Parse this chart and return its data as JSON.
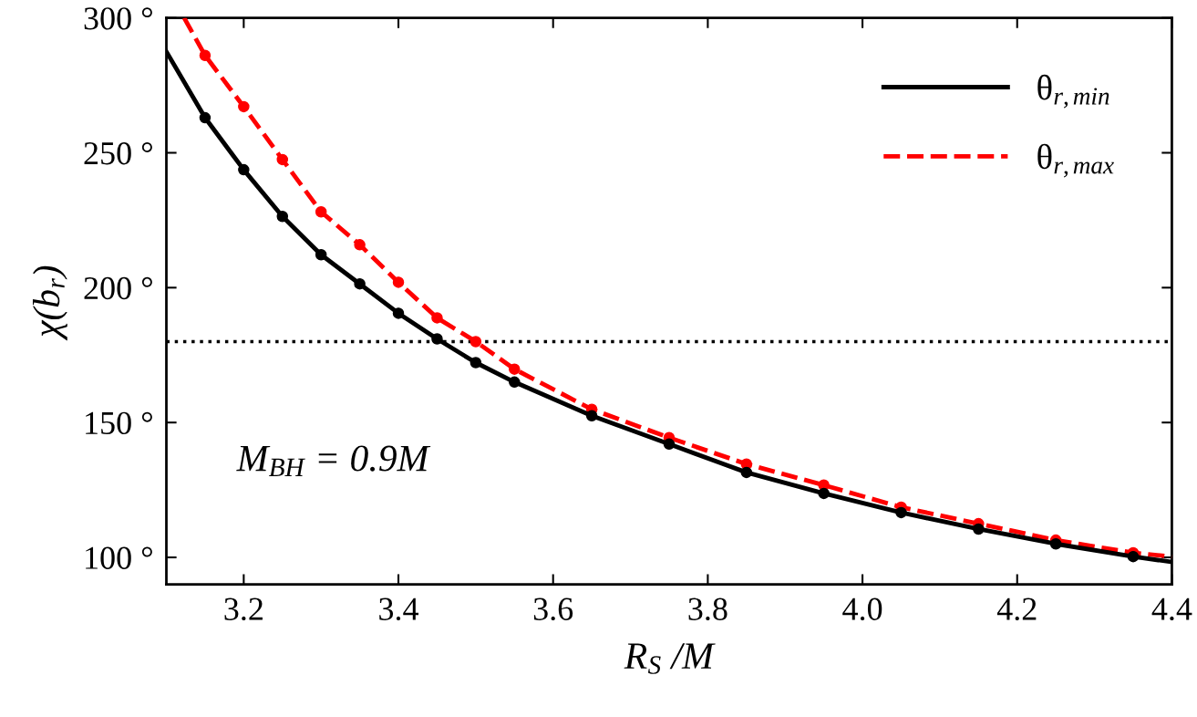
{
  "chart_data": {
    "type": "line",
    "xlabel": "R$_{S}$ /M",
    "ylabel": "χ(b$_{r}$)",
    "xlim": [
      3.1,
      4.4
    ],
    "xticks": [
      {
        "value": 3.2,
        "label": "3.2"
      },
      {
        "value": 3.4,
        "label": "3.4"
      },
      {
        "value": 3.6,
        "label": "3.6"
      },
      {
        "value": 3.8,
        "label": "3.8"
      },
      {
        "value": 4.0,
        "label": "4.0"
      },
      {
        "value": 4.2,
        "label": "4.2"
      },
      {
        "value": 4.4,
        "label": "4.4"
      }
    ],
    "ylim": [
      90,
      300
    ],
    "yticks": [
      {
        "value": 100,
        "label": "100 °"
      },
      {
        "value": 150,
        "label": "150 °"
      },
      {
        "value": 200,
        "label": "200 °"
      },
      {
        "value": 250,
        "label": "250 °"
      },
      {
        "value": 300,
        "label": "300 °"
      }
    ],
    "series": [
      {
        "name": "θ$_{r,min}$",
        "color": "#000000",
        "line_style": "solid",
        "x": [
          3.1,
          3.15,
          3.2,
          3.25,
          3.3,
          3.35,
          3.4,
          3.45,
          3.5,
          3.55,
          3.65,
          3.75,
          3.85,
          3.95,
          4.05,
          4.15,
          4.25,
          4.35,
          4.4
        ],
        "values": [
          287.5,
          263,
          243.7,
          226.4,
          212.2,
          201.4,
          190.5,
          181,
          172.2,
          165,
          152.5,
          142,
          131.5,
          123.7,
          116.6,
          110.5,
          105,
          100.3,
          98.3
        ]
      },
      {
        "name": "θ$_{r,max}$",
        "color": "#ff0000",
        "line_style": "dashed",
        "x": [
          3.123,
          3.15,
          3.2,
          3.25,
          3.3,
          3.35,
          3.4,
          3.45,
          3.5,
          3.55,
          3.65,
          3.75,
          3.85,
          3.95,
          4.05,
          4.15,
          4.25,
          4.35,
          4.4
        ],
        "values": [
          300,
          286.1,
          267.1,
          247.5,
          228.1,
          215.9,
          202,
          188.8,
          180,
          169.8,
          154.9,
          144.4,
          134.6,
          126.8,
          118.6,
          112.5,
          106.4,
          101.7,
          100.3
        ]
      }
    ],
    "marker": "circle",
    "legend": "top right",
    "grid": false,
    "ref_lines": [
      {
        "axis": "y",
        "value": 180,
        "color": "#000000",
        "line_style": "dotted"
      }
    ],
    "annotations": [
      "M$_{BH}$ = 0.9M"
    ]
  }
}
